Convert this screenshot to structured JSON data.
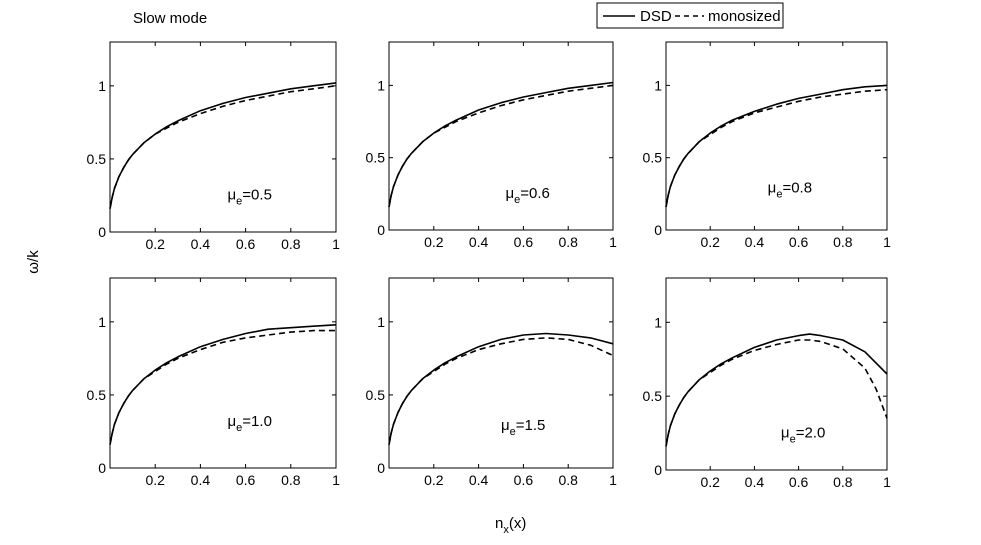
{
  "figure": {
    "title": "Slow mode",
    "xlabel_main": "n",
    "xlabel_sub": "x",
    "xlabel_tail": "(x)",
    "ylabel": "ω/k"
  },
  "legend": {
    "placement": "top-center",
    "entries": [
      {
        "name": "DSD",
        "style": "solid"
      },
      {
        "name": "monosized",
        "style": "dashed"
      }
    ]
  },
  "chart_data": [
    {
      "type": "line",
      "label_main": "μ",
      "label_sub": "e",
      "label_value": "=0.5",
      "xlim": [
        0,
        1
      ],
      "ylim": [
        0,
        1.3
      ],
      "xticks": [
        0.2,
        0.4,
        0.6,
        0.8,
        1
      ],
      "xtick_labels": [
        "0.2",
        "0.4",
        "0.6",
        "0.8",
        "1"
      ],
      "yticks": [
        0,
        0.5,
        1
      ],
      "ytick_labels": [
        "0",
        "0.5",
        "1"
      ],
      "series": [
        {
          "name": "DSD",
          "style": "solid",
          "x": [
            0.0,
            0.01,
            0.02,
            0.04,
            0.06,
            0.08,
            0.1,
            0.15,
            0.2,
            0.25,
            0.3,
            0.4,
            0.5,
            0.6,
            0.7,
            0.8,
            0.9,
            1.0
          ],
          "y": [
            0.16,
            0.24,
            0.3,
            0.38,
            0.44,
            0.49,
            0.53,
            0.61,
            0.67,
            0.72,
            0.76,
            0.83,
            0.88,
            0.92,
            0.95,
            0.98,
            1.0,
            1.02
          ]
        },
        {
          "name": "monosized",
          "style": "dashed",
          "x": [
            0.0,
            0.01,
            0.02,
            0.04,
            0.06,
            0.08,
            0.1,
            0.15,
            0.2,
            0.25,
            0.3,
            0.4,
            0.5,
            0.6,
            0.7,
            0.8,
            0.9,
            1.0
          ],
          "y": [
            0.16,
            0.24,
            0.3,
            0.38,
            0.44,
            0.49,
            0.53,
            0.61,
            0.67,
            0.71,
            0.75,
            0.81,
            0.86,
            0.9,
            0.93,
            0.96,
            0.98,
            1.0
          ]
        }
      ]
    },
    {
      "type": "line",
      "label_main": "μ",
      "label_sub": "e",
      "label_value": "=0.6",
      "xlim": [
        0,
        1
      ],
      "ylim": [
        0,
        1.3
      ],
      "xticks": [
        0.2,
        0.4,
        0.6,
        0.8,
        1
      ],
      "xtick_labels": [
        "0.2",
        "0.4",
        "0.6",
        "0.8",
        "1"
      ],
      "yticks": [
        0,
        0.5,
        1
      ],
      "ytick_labels": [
        "0",
        "0.5",
        "1"
      ],
      "series": [
        {
          "name": "DSD",
          "style": "solid",
          "x": [
            0.0,
            0.01,
            0.02,
            0.04,
            0.06,
            0.08,
            0.1,
            0.15,
            0.2,
            0.25,
            0.3,
            0.4,
            0.5,
            0.6,
            0.7,
            0.8,
            0.9,
            1.0
          ],
          "y": [
            0.16,
            0.24,
            0.3,
            0.38,
            0.44,
            0.49,
            0.53,
            0.61,
            0.67,
            0.72,
            0.76,
            0.83,
            0.88,
            0.92,
            0.95,
            0.98,
            1.0,
            1.02
          ]
        },
        {
          "name": "monosized",
          "style": "dashed",
          "x": [
            0.0,
            0.01,
            0.02,
            0.04,
            0.06,
            0.08,
            0.1,
            0.15,
            0.2,
            0.25,
            0.3,
            0.4,
            0.5,
            0.6,
            0.7,
            0.8,
            0.9,
            1.0
          ],
          "y": [
            0.16,
            0.24,
            0.3,
            0.38,
            0.44,
            0.49,
            0.53,
            0.61,
            0.67,
            0.71,
            0.75,
            0.81,
            0.86,
            0.9,
            0.93,
            0.96,
            0.98,
            1.0
          ]
        }
      ]
    },
    {
      "type": "line",
      "label_main": "μ",
      "label_sub": "e",
      "label_value": "=0.8",
      "xlim": [
        0,
        1
      ],
      "ylim": [
        0,
        1.3
      ],
      "xticks": [
        0.2,
        0.4,
        0.6,
        0.8,
        1
      ],
      "xtick_labels": [
        "0.2",
        "0.4",
        "0.6",
        "0.8",
        "1"
      ],
      "yticks": [
        0,
        0.5,
        1
      ],
      "ytick_labels": [
        "0",
        "0.5",
        "1"
      ],
      "series": [
        {
          "name": "DSD",
          "style": "solid",
          "x": [
            0.0,
            0.01,
            0.02,
            0.04,
            0.06,
            0.08,
            0.1,
            0.15,
            0.2,
            0.25,
            0.3,
            0.4,
            0.5,
            0.6,
            0.7,
            0.8,
            0.9,
            1.0
          ],
          "y": [
            0.16,
            0.24,
            0.3,
            0.38,
            0.44,
            0.49,
            0.53,
            0.61,
            0.67,
            0.72,
            0.76,
            0.82,
            0.87,
            0.91,
            0.94,
            0.97,
            0.99,
            1.0
          ]
        },
        {
          "name": "monosized",
          "style": "dashed",
          "x": [
            0.0,
            0.01,
            0.02,
            0.04,
            0.06,
            0.08,
            0.1,
            0.15,
            0.2,
            0.25,
            0.3,
            0.4,
            0.5,
            0.6,
            0.7,
            0.8,
            0.9,
            1.0
          ],
          "y": [
            0.16,
            0.24,
            0.3,
            0.38,
            0.44,
            0.49,
            0.53,
            0.61,
            0.66,
            0.71,
            0.75,
            0.81,
            0.85,
            0.89,
            0.92,
            0.94,
            0.96,
            0.97
          ]
        }
      ]
    },
    {
      "type": "line",
      "label_main": "μ",
      "label_sub": "e",
      "label_value": "=1.0",
      "xlim": [
        0,
        1
      ],
      "ylim": [
        0,
        1.3
      ],
      "xticks": [
        0.2,
        0.4,
        0.6,
        0.8,
        1
      ],
      "xtick_labels": [
        "0.2",
        "0.4",
        "0.6",
        "0.8",
        "1"
      ],
      "yticks": [
        0,
        0.5,
        1
      ],
      "ytick_labels": [
        "0",
        "0.5",
        "1"
      ],
      "series": [
        {
          "name": "DSD",
          "style": "solid",
          "x": [
            0.0,
            0.01,
            0.02,
            0.04,
            0.06,
            0.08,
            0.1,
            0.15,
            0.2,
            0.25,
            0.3,
            0.4,
            0.5,
            0.6,
            0.7,
            0.8,
            0.9,
            1.0
          ],
          "y": [
            0.16,
            0.24,
            0.3,
            0.38,
            0.44,
            0.49,
            0.53,
            0.61,
            0.67,
            0.72,
            0.76,
            0.83,
            0.88,
            0.92,
            0.95,
            0.96,
            0.97,
            0.98
          ]
        },
        {
          "name": "monosized",
          "style": "dashed",
          "x": [
            0.0,
            0.01,
            0.02,
            0.04,
            0.06,
            0.08,
            0.1,
            0.15,
            0.2,
            0.25,
            0.3,
            0.4,
            0.5,
            0.6,
            0.7,
            0.8,
            0.9,
            1.0
          ],
          "y": [
            0.16,
            0.24,
            0.3,
            0.38,
            0.44,
            0.49,
            0.53,
            0.61,
            0.66,
            0.71,
            0.75,
            0.81,
            0.86,
            0.89,
            0.91,
            0.93,
            0.94,
            0.94
          ]
        }
      ]
    },
    {
      "type": "line",
      "label_main": "μ",
      "label_sub": "e",
      "label_value": "=1.5",
      "xlim": [
        0,
        1
      ],
      "ylim": [
        0,
        1.3
      ],
      "xticks": [
        0.2,
        0.4,
        0.6,
        0.8,
        1
      ],
      "xtick_labels": [
        "0.2",
        "0.4",
        "0.6",
        "0.8",
        "1"
      ],
      "yticks": [
        0,
        0.5,
        1
      ],
      "ytick_labels": [
        "0",
        "0.5",
        "1"
      ],
      "series": [
        {
          "name": "DSD",
          "style": "solid",
          "x": [
            0.0,
            0.01,
            0.02,
            0.04,
            0.06,
            0.08,
            0.1,
            0.15,
            0.2,
            0.25,
            0.3,
            0.4,
            0.5,
            0.6,
            0.7,
            0.8,
            0.9,
            1.0
          ],
          "y": [
            0.16,
            0.24,
            0.3,
            0.38,
            0.44,
            0.49,
            0.53,
            0.61,
            0.67,
            0.72,
            0.76,
            0.83,
            0.88,
            0.91,
            0.92,
            0.91,
            0.89,
            0.85
          ]
        },
        {
          "name": "monosized",
          "style": "dashed",
          "x": [
            0.0,
            0.01,
            0.02,
            0.04,
            0.06,
            0.08,
            0.1,
            0.15,
            0.2,
            0.25,
            0.3,
            0.4,
            0.5,
            0.6,
            0.7,
            0.8,
            0.9,
            1.0
          ],
          "y": [
            0.16,
            0.24,
            0.3,
            0.38,
            0.44,
            0.49,
            0.53,
            0.61,
            0.66,
            0.71,
            0.75,
            0.81,
            0.85,
            0.88,
            0.89,
            0.88,
            0.84,
            0.77
          ]
        }
      ]
    },
    {
      "type": "line",
      "label_main": "μ",
      "label_sub": "e",
      "label_value": "=2.0",
      "xlim": [
        0,
        1
      ],
      "ylim": [
        0,
        1.3
      ],
      "xticks": [
        0.2,
        0.4,
        0.6,
        0.8,
        1
      ],
      "xtick_labels": [
        "0.2",
        "0.4",
        "0.6",
        "0.8",
        "1"
      ],
      "yticks": [
        0,
        0.5,
        1
      ],
      "ytick_labels": [
        "0",
        "0.5",
        "1"
      ],
      "series": [
        {
          "name": "DSD",
          "style": "solid",
          "x": [
            0.0,
            0.01,
            0.02,
            0.04,
            0.06,
            0.08,
            0.1,
            0.15,
            0.2,
            0.25,
            0.3,
            0.4,
            0.5,
            0.6,
            0.65,
            0.7,
            0.8,
            0.9,
            1.0
          ],
          "y": [
            0.16,
            0.24,
            0.3,
            0.38,
            0.44,
            0.49,
            0.53,
            0.61,
            0.67,
            0.72,
            0.76,
            0.83,
            0.88,
            0.91,
            0.92,
            0.91,
            0.88,
            0.8,
            0.65
          ]
        },
        {
          "name": "monosized",
          "style": "dashed",
          "x": [
            0.0,
            0.01,
            0.02,
            0.04,
            0.06,
            0.08,
            0.1,
            0.15,
            0.2,
            0.25,
            0.3,
            0.4,
            0.5,
            0.6,
            0.65,
            0.7,
            0.8,
            0.9,
            0.95,
            1.0
          ],
          "y": [
            0.16,
            0.24,
            0.3,
            0.38,
            0.44,
            0.49,
            0.53,
            0.61,
            0.66,
            0.71,
            0.75,
            0.81,
            0.85,
            0.88,
            0.88,
            0.87,
            0.82,
            0.69,
            0.55,
            0.35
          ]
        }
      ]
    }
  ]
}
